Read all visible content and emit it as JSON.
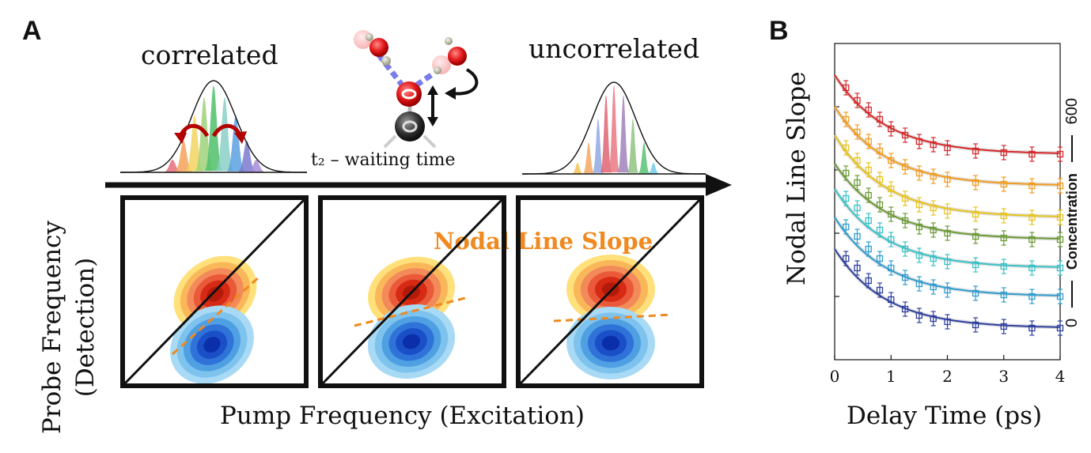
{
  "panel_a": {
    "letter": "A",
    "correlated_label": "correlated",
    "uncorrelated_label": "uncorrelated",
    "waiting_time_label": "t₂ – waiting time",
    "nodal_line_label": "Nodal Line Slope",
    "x_axis_label": "Pump Frequency (Excitation)",
    "y_axis_label_line1": "Probe Frequency",
    "y_axis_label_line2": "(Detection)"
  },
  "panel_b": {
    "letter": "B",
    "ylabel": "Nodal Line Slope",
    "xlabel": "Delay Time (ps)",
    "concentration_label": "Concentration",
    "conc_min": "0",
    "conc_max": "600"
  },
  "colors": {
    "nodal_orange": "#f0891f",
    "series": [
      "#d62728",
      "#f29b1d",
      "#e8c31b",
      "#6b9a34",
      "#37c1c6",
      "#2e9cd0",
      "#2d3e9e"
    ]
  },
  "chart_data": {
    "type": "scatter",
    "xlabel": "Delay Time (ps)",
    "ylabel": "Nodal Line Slope",
    "xlim": [
      0,
      4
    ],
    "ylim": [
      0,
      1
    ],
    "xticks": [
      "0",
      "1",
      "2",
      "3",
      "4"
    ],
    "x": [
      0.2,
      0.4,
      0.6,
      0.8,
      1.0,
      1.25,
      1.5,
      1.75,
      2.0,
      2.5,
      3.0,
      3.5,
      4.0
    ],
    "series": [
      {
        "values": [
          0.86,
          0.82,
          0.79,
          0.76,
          0.73,
          0.71,
          0.69,
          0.68,
          0.67,
          0.66,
          0.655,
          0.65,
          0.65
        ]
      },
      {
        "values": [
          0.76,
          0.72,
          0.69,
          0.66,
          0.63,
          0.61,
          0.59,
          0.58,
          0.57,
          0.56,
          0.555,
          0.55,
          0.55
        ]
      },
      {
        "values": [
          0.67,
          0.63,
          0.6,
          0.57,
          0.54,
          0.51,
          0.49,
          0.48,
          0.47,
          0.46,
          0.455,
          0.45,
          0.45
        ]
      },
      {
        "values": [
          0.59,
          0.56,
          0.52,
          0.49,
          0.46,
          0.44,
          0.42,
          0.41,
          0.4,
          0.39,
          0.385,
          0.38,
          0.38
        ]
      },
      {
        "values": [
          0.51,
          0.48,
          0.44,
          0.41,
          0.38,
          0.35,
          0.33,
          0.32,
          0.31,
          0.3,
          0.295,
          0.29,
          0.29
        ]
      },
      {
        "values": [
          0.42,
          0.39,
          0.35,
          0.32,
          0.29,
          0.26,
          0.24,
          0.23,
          0.22,
          0.21,
          0.205,
          0.2,
          0.2
        ]
      },
      {
        "values": [
          0.32,
          0.29,
          0.25,
          0.22,
          0.19,
          0.16,
          0.14,
          0.13,
          0.12,
          0.11,
          0.105,
          0.1,
          0.1
        ]
      }
    ]
  }
}
